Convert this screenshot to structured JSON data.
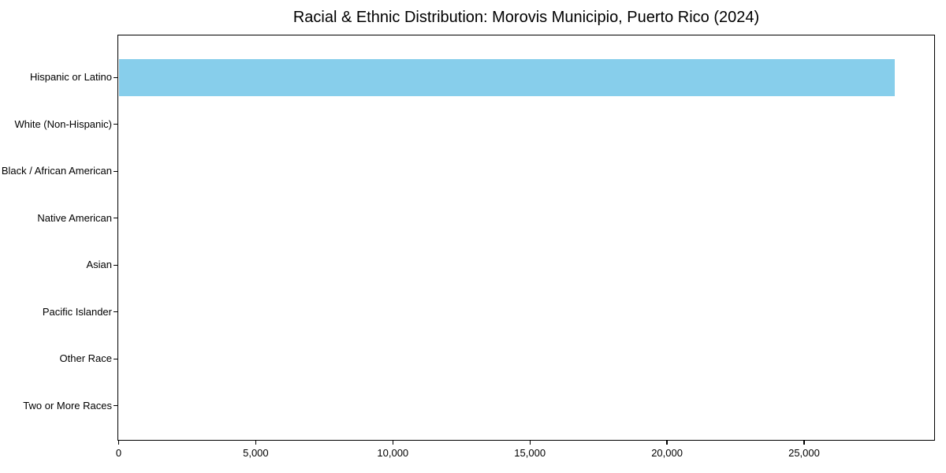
{
  "chart_data": {
    "type": "bar",
    "orientation": "horizontal",
    "title": "Racial & Ethnic Distribution: Morovis Municipio, Puerto Rico (2024)",
    "categories": [
      "Hispanic or Latino",
      "White (Non-Hispanic)",
      "Black / African American",
      "Native American",
      "Asian",
      "Pacific Islander",
      "Other Race",
      "Two or More Races"
    ],
    "values": [
      28300,
      0,
      0,
      0,
      0,
      0,
      0,
      0
    ],
    "xlabel": "",
    "ylabel": "",
    "xlim": [
      0,
      29730
    ],
    "xticks": [
      0,
      5000,
      10000,
      15000,
      20000,
      25000
    ],
    "xtick_labels": [
      "0",
      "5,000",
      "10,000",
      "15,000",
      "20,000",
      "25,000"
    ],
    "bar_color": "#87CEEB",
    "grid": false,
    "legend": null
  }
}
